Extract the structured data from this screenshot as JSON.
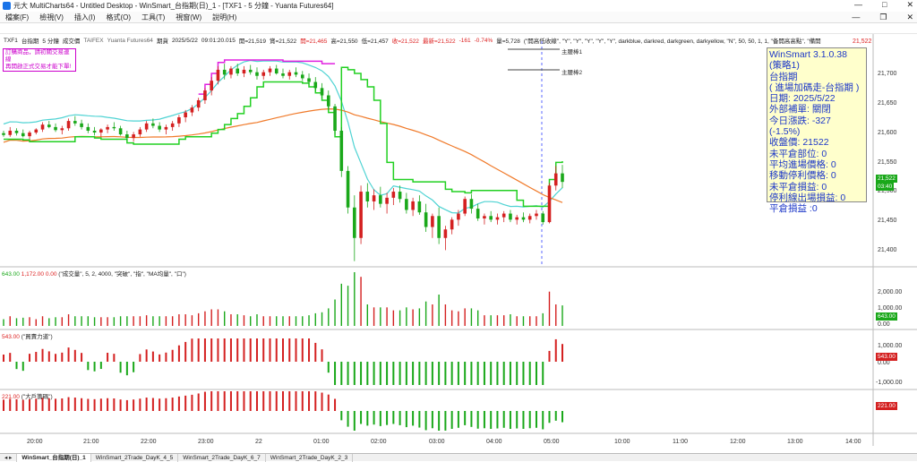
{
  "window": {
    "title": "元大 MultiCharts64 - Untitled Desktop - WinSmart_台指期(日)_1 - [TXF1 - 5 分鐘 - Yuanta Futures64]",
    "controls": [
      "—",
      "□",
      "✕"
    ]
  },
  "menu": {
    "items": [
      "檔案(F)",
      "檢視(V)",
      "插入(I)",
      "格式(O)",
      "工具(T)",
      "視窗(W)",
      "說明(H)"
    ],
    "mdi_controls": [
      "—",
      "❐",
      "✕"
    ]
  },
  "status": {
    "symbol": "TXF1",
    "name": "台指期",
    "interval": "5 分鐘",
    "mode": "成交價",
    "exchange": "TAIFEX",
    "source": "Yuanta Futures64",
    "period": "期貨",
    "datetime": "2025/5/22",
    "time": "09:01:20.015",
    "open": "開=21,519",
    "high_lbl": "賞=21,522",
    "close_red": "開=21,465",
    "high": "高=21,550",
    "low": "低=21,457",
    "prev": "收=21,522",
    "last": "最新=21,522",
    "chg": "-161",
    "pct": "-0.74%",
    "vol": "量=5,728",
    "study": "(\"開高低收線\", \"Y\", \"Y\", \"Y\", \"Y\", \"Y\", darkblue, darkred, darkgreen, darkyellow, \"N\", 50, 50, 1, 1, \"备開高高點\", \"備開"
  },
  "notice": {
    "line1": "訂購商品，請初關交易連線",
    "line2": "再開啟正式交易才能下單!"
  },
  "legend": {
    "a": "主腰棒1",
    "b": "主腰棒2"
  },
  "infobox": {
    "lines": [
      "WinSmart 3.1.0.38",
      "(策略1)",
      "台指期",
      "( 進場加碼走-台指期 )",
      "日期: 2025/5/22",
      "外部補單: 關閉",
      "今日漲跌: -327 (-1.5%)",
      "收盤價: 21522",
      "未平倉部位: 0",
      "平均進場價格: 0",
      "移動停利價格: 0",
      "未平倉損益: 0",
      "停利線出場損益: 0",
      "平倉損益 :0"
    ]
  },
  "price_axis": {
    "ticks": [
      "21,700",
      "21,650",
      "21,600",
      "21,550",
      "21,500",
      "21,450",
      "21,400"
    ],
    "top": "21,522",
    "last_tag": "21,522",
    "ma_tag": "03:40"
  },
  "volume_panel": {
    "header_val": "643.00",
    "header_val2": "1,172.00",
    "header_val3": "0.00",
    "header": "(\"成交量\", 5, 2, 4000, \"突破\", \"指\", \"MA均量\", \"口\")",
    "ticks": [
      "2,000.00",
      "1,000.00",
      "0.00"
    ],
    "tag": "643.00"
  },
  "power_panel": {
    "header_val": "543.00",
    "header": "(\"買賣力道\")",
    "ticks": [
      "1,000.00",
      "0.00",
      "-1,000.00"
    ],
    "tag": "543.00"
  },
  "big_panel": {
    "header_val": "221.00",
    "header": "(\"大戶籌碼\")",
    "tag": "221.00"
  },
  "time_axis": {
    "labels": [
      "20:00",
      "21:00",
      "22:00",
      "23:00",
      "22",
      "01:00",
      "02:00",
      "03:00",
      "04:00",
      "05:00",
      "10:00",
      "11:00",
      "12:00",
      "13:00",
      "14:00"
    ]
  },
  "tabs": [
    "WinSmart_台指期(日)_1",
    "WinSmart_2Trade_DayK_4_5",
    "WinSmart_2Trade_DayK_6_7",
    "WinSmart_2Trade_DayK_2_3"
  ],
  "colors": {
    "up": "#d42020",
    "down": "#1aa81a",
    "cyan": "#4fd3d3",
    "orange": "#f07a2a",
    "magenta": "#e020e0",
    "green_line": "#22d022",
    "infobox_text": "#1d38c8"
  },
  "chart_data": {
    "type": "candlestick",
    "y_range": [
      21390,
      21725
    ],
    "candles": [
      [
        21602,
        21606,
        21596,
        21599
      ],
      [
        21599,
        21612,
        21596,
        21606
      ],
      [
        21606,
        21610,
        21598,
        21602
      ],
      [
        21602,
        21608,
        21595,
        21597
      ],
      [
        21597,
        21606,
        21592,
        21603
      ],
      [
        21603,
        21610,
        21600,
        21608
      ],
      [
        21608,
        21620,
        21604,
        21616
      ],
      [
        21616,
        21622,
        21610,
        21612
      ],
      [
        21612,
        21618,
        21604,
        21607
      ],
      [
        21607,
        21614,
        21600,
        21610
      ],
      [
        21610,
        21626,
        21606,
        21622
      ],
      [
        21622,
        21630,
        21614,
        21618
      ],
      [
        21618,
        21624,
        21608,
        21612
      ],
      [
        21612,
        21618,
        21602,
        21606
      ],
      [
        21606,
        21612,
        21598,
        21603
      ],
      [
        21603,
        21610,
        21596,
        21608
      ],
      [
        21608,
        21616,
        21602,
        21612
      ],
      [
        21612,
        21620,
        21606,
        21610
      ],
      [
        21610,
        21614,
        21598,
        21600
      ],
      [
        21600,
        21606,
        21590,
        21594
      ],
      [
        21594,
        21604,
        21588,
        21600
      ],
      [
        21600,
        21612,
        21596,
        21608
      ],
      [
        21608,
        21622,
        21604,
        21618
      ],
      [
        21618,
        21626,
        21610,
        21614
      ],
      [
        21614,
        21620,
        21604,
        21608
      ],
      [
        21608,
        21616,
        21600,
        21612
      ],
      [
        21612,
        21622,
        21606,
        21618
      ],
      [
        21618,
        21632,
        21612,
        21628
      ],
      [
        21628,
        21640,
        21620,
        21636
      ],
      [
        21636,
        21648,
        21630,
        21644
      ],
      [
        21644,
        21660,
        21638,
        21656
      ],
      [
        21656,
        21676,
        21650,
        21672
      ],
      [
        21672,
        21694,
        21664,
        21688
      ],
      [
        21688,
        21712,
        21682,
        21706
      ],
      [
        21706,
        21716,
        21690,
        21698
      ],
      [
        21698,
        21712,
        21692,
        21708
      ],
      [
        21708,
        21716,
        21696,
        21700
      ],
      [
        21700,
        21712,
        21694,
        21706
      ],
      [
        21706,
        21714,
        21698,
        21702
      ],
      [
        21702,
        21710,
        21690,
        21696
      ],
      [
        21696,
        21706,
        21690,
        21702
      ],
      [
        21702,
        21712,
        21696,
        21708
      ],
      [
        21708,
        21714,
        21698,
        21700
      ],
      [
        21700,
        21708,
        21692,
        21696
      ],
      [
        21696,
        21706,
        21690,
        21702
      ],
      [
        21702,
        21710,
        21694,
        21698
      ],
      [
        21698,
        21704,
        21688,
        21692
      ],
      [
        21692,
        21700,
        21682,
        21686
      ],
      [
        21686,
        21694,
        21672,
        21676
      ],
      [
        21676,
        21684,
        21660,
        21664
      ],
      [
        21664,
        21672,
        21640,
        21646
      ],
      [
        21646,
        21650,
        21600,
        21606
      ],
      [
        21606,
        21612,
        21530,
        21540
      ],
      [
        21540,
        21548,
        21470,
        21480
      ],
      [
        21480,
        21500,
        21392,
        21430
      ],
      [
        21430,
        21516,
        21420,
        21506
      ],
      [
        21506,
        21520,
        21480,
        21490
      ],
      [
        21490,
        21510,
        21476,
        21500
      ],
      [
        21500,
        21514,
        21480,
        21486
      ],
      [
        21486,
        21504,
        21470,
        21496
      ],
      [
        21496,
        21512,
        21484,
        21506
      ],
      [
        21506,
        21516,
        21488,
        21494
      ],
      [
        21494,
        21504,
        21470,
        21476
      ],
      [
        21476,
        21496,
        21466,
        21490
      ],
      [
        21490,
        21500,
        21468,
        21472
      ],
      [
        21472,
        21486,
        21440,
        21448
      ],
      [
        21448,
        21470,
        21430,
        21466
      ],
      [
        21466,
        21480,
        21420,
        21430
      ],
      [
        21430,
        21450,
        21410,
        21444
      ],
      [
        21444,
        21464,
        21436,
        21460
      ],
      [
        21460,
        21476,
        21450,
        21470
      ],
      [
        21470,
        21498,
        21466,
        21494
      ],
      [
        21494,
        21502,
        21470,
        21478
      ],
      [
        21478,
        21486,
        21458,
        21462
      ],
      [
        21462,
        21470,
        21452,
        21466
      ],
      [
        21466,
        21474,
        21456,
        21460
      ],
      [
        21460,
        21470,
        21452,
        21464
      ],
      [
        21464,
        21474,
        21456,
        21470
      ],
      [
        21470,
        21476,
        21456,
        21460
      ],
      [
        21460,
        21468,
        21452,
        21464
      ],
      [
        21464,
        21472,
        21456,
        21460
      ],
      [
        21460,
        21470,
        21454,
        21466
      ],
      [
        21466,
        21476,
        21460,
        21470
      ],
      [
        21470,
        21474,
        21452,
        21456
      ],
      [
        21456,
        21520,
        21454,
        21516
      ],
      [
        21516,
        21548,
        21508,
        21536
      ],
      [
        21536,
        21550,
        21512,
        21522
      ]
    ]
  }
}
